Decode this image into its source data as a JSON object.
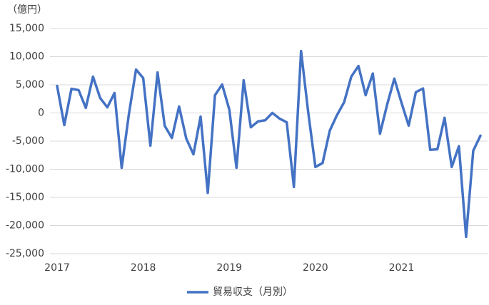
{
  "chart_data": {
    "type": "line",
    "y_label": "（億円）",
    "categories": [
      "2017",
      null,
      null,
      null,
      null,
      null,
      null,
      null,
      null,
      null,
      null,
      null,
      "2018",
      null,
      null,
      null,
      null,
      null,
      null,
      null,
      null,
      null,
      null,
      null,
      "2019",
      null,
      null,
      null,
      null,
      null,
      null,
      null,
      null,
      null,
      null,
      null,
      "2020",
      null,
      null,
      null,
      null,
      null,
      null,
      null,
      null,
      null,
      null,
      null,
      "2021",
      null,
      null,
      null,
      null,
      null,
      null,
      null,
      null,
      null,
      null,
      null
    ],
    "series": [
      {
        "name": "貿易収支（月別）",
        "color": "#4472c4",
        "values": [
          4800,
          -2150,
          4300,
          4050,
          900,
          6450,
          2650,
          1000,
          3550,
          -9750,
          -250,
          7700,
          6200,
          -5800,
          7200,
          -2300,
          -4450,
          1150,
          -4550,
          -7350,
          -650,
          -14200,
          3150,
          5050,
          600,
          -9750,
          5800,
          -2550,
          -1500,
          -1300,
          0,
          -1000,
          -1650,
          -13150,
          11000,
          100,
          -9600,
          -8900,
          -3150,
          -400,
          1900,
          6450,
          8350,
          3150,
          7000,
          -3700,
          1500,
          6100,
          1800,
          -2250,
          3700,
          4350,
          -6550,
          -6450,
          -850,
          -9600,
          -5900,
          -22000,
          -6700,
          -4050
        ]
      }
    ],
    "ylim": [
      -25000,
      15000
    ],
    "yticks": [
      {
        "value": -25000,
        "label": "-25,000"
      },
      {
        "value": -20000,
        "label": "-20,000"
      },
      {
        "value": -15000,
        "label": "-15,000"
      },
      {
        "value": -10000,
        "label": "-10,000"
      },
      {
        "value": -5000,
        "label": "-5,000"
      },
      0,
      {
        "value": 5000,
        "label": "5,000"
      },
      {
        "value": 10000,
        "label": "10,000"
      },
      {
        "value": 15000,
        "label": "15,000"
      }
    ],
    "grid": true,
    "legend": "bottom"
  }
}
